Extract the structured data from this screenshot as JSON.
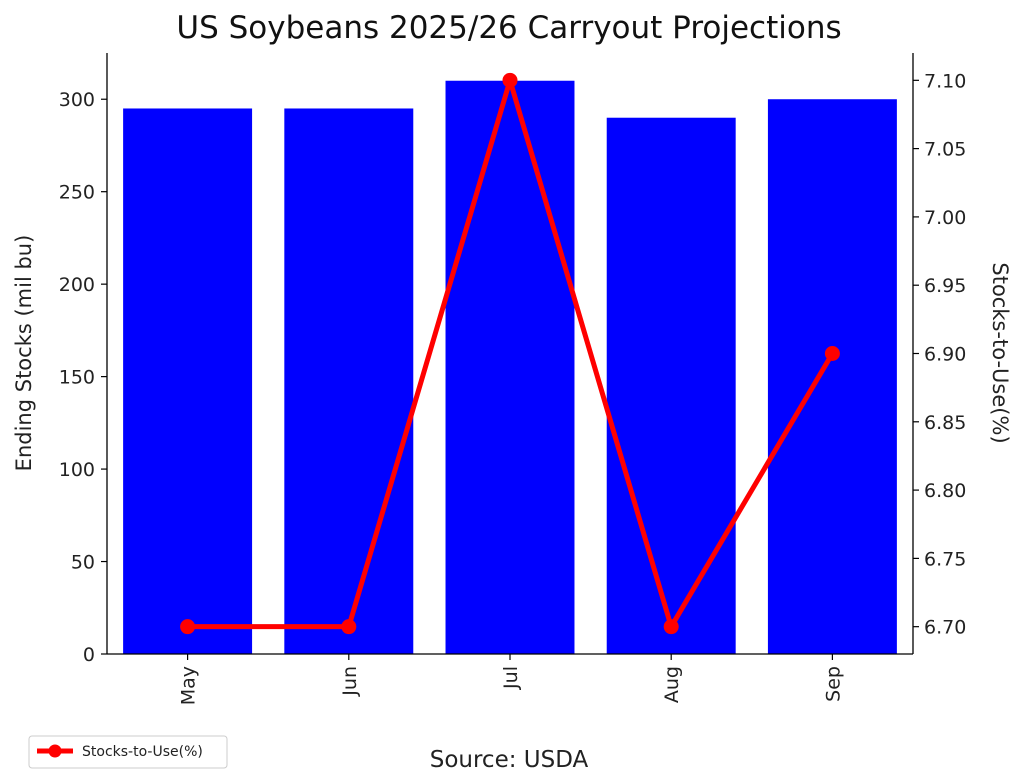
{
  "chart_data": {
    "type": "bar",
    "title": "US Soybeans 2025/26 Carryout Projections",
    "categories": [
      "May",
      "Jun",
      "Jul",
      "Aug",
      "Sep"
    ],
    "bar_series": {
      "axis": "left",
      "values": [
        295,
        295,
        310,
        290,
        300
      ],
      "color": "#0000ff"
    },
    "line_series": {
      "name": "Stocks-to-Use(%)",
      "axis": "right",
      "values": [
        6.7,
        6.7,
        7.1,
        6.7,
        6.9
      ],
      "color": "#ff0000"
    },
    "ylabel": "Ending Stocks (mil bu)",
    "ylim": [
      0,
      325
    ],
    "yticks": [
      "0",
      "50",
      "100",
      "150",
      "200",
      "250",
      "300"
    ],
    "ylabel_right": "Stocks-to-Use(%)",
    "ylim_right": [
      6.68,
      7.12
    ],
    "yticks_right": [
      "6.70",
      "6.75",
      "6.80",
      "6.85",
      "6.90",
      "6.95",
      "7.00",
      "7.05",
      "7.10"
    ],
    "xtick_rotation": "vertical",
    "grid": false,
    "legend": {
      "placement": "bottom-left",
      "entries": [
        "Stocks-to-Use(%)"
      ]
    },
    "source": "Source: USDA"
  }
}
